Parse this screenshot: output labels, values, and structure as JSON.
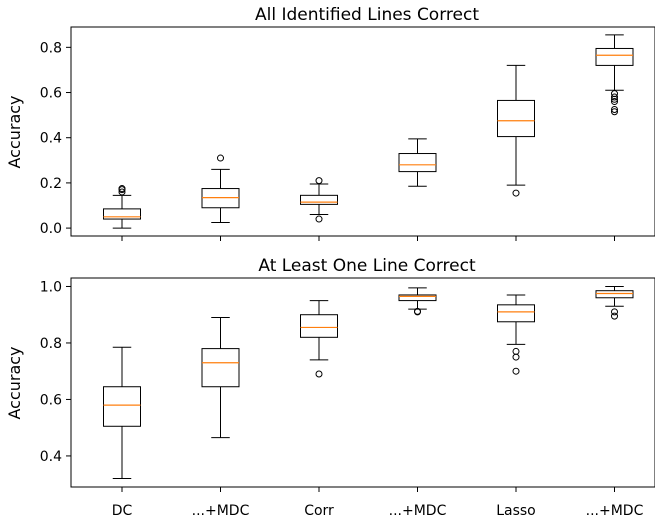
{
  "colors": {
    "box": "#000000",
    "median": "#ff7f0e",
    "background": "#ffffff"
  },
  "categories": [
    "DC",
    "...+MDC",
    "Corr",
    "...+MDC",
    "Lasso",
    "...+MDC"
  ],
  "chart_data": [
    {
      "type": "box",
      "title": "All Identified Lines Correct",
      "xlabel": "",
      "ylabel": "Accuracy",
      "ylim": [
        -0.035,
        0.89
      ],
      "yticks": [
        0.0,
        0.2,
        0.4,
        0.6,
        0.8
      ],
      "ytick_labels": [
        "0.0",
        "0.2",
        "0.4",
        "0.6",
        "0.8"
      ],
      "series": [
        {
          "category": "DC",
          "whisker_low": 0.0,
          "q1": 0.04,
          "median": 0.05,
          "q3": 0.085,
          "whisker_high": 0.145,
          "outliers": [
            0.16,
            0.17,
            0.175
          ]
        },
        {
          "category": "...+MDC",
          "whisker_low": 0.025,
          "q1": 0.09,
          "median": 0.135,
          "q3": 0.175,
          "whisker_high": 0.26,
          "outliers": [
            0.31
          ]
        },
        {
          "category": "Corr",
          "whisker_low": 0.06,
          "q1": 0.105,
          "median": 0.115,
          "q3": 0.145,
          "whisker_high": 0.195,
          "outliers": [
            0.04,
            0.21
          ]
        },
        {
          "category": "...+MDC",
          "whisker_low": 0.185,
          "q1": 0.25,
          "median": 0.28,
          "q3": 0.33,
          "whisker_high": 0.395,
          "outliers": []
        },
        {
          "category": "Lasso",
          "whisker_low": 0.19,
          "q1": 0.405,
          "median": 0.475,
          "q3": 0.565,
          "whisker_high": 0.72,
          "outliers": [
            0.155
          ]
        },
        {
          "category": "...+MDC",
          "whisker_low": 0.61,
          "q1": 0.72,
          "median": 0.765,
          "q3": 0.795,
          "whisker_high": 0.855,
          "outliers": [
            0.515,
            0.525,
            0.56,
            0.57,
            0.58,
            0.595
          ]
        }
      ]
    },
    {
      "type": "box",
      "title": "At Least One Line Correct",
      "xlabel": "",
      "ylabel": "Accuracy",
      "ylim": [
        0.29,
        1.03
      ],
      "yticks": [
        0.4,
        0.6,
        0.8,
        1.0
      ],
      "ytick_labels": [
        "0.4",
        "0.6",
        "0.8",
        "1.0"
      ],
      "series": [
        {
          "category": "DC",
          "whisker_low": 0.32,
          "q1": 0.505,
          "median": 0.58,
          "q3": 0.645,
          "whisker_high": 0.785,
          "outliers": []
        },
        {
          "category": "...+MDC",
          "whisker_low": 0.465,
          "q1": 0.645,
          "median": 0.73,
          "q3": 0.78,
          "whisker_high": 0.89,
          "outliers": []
        },
        {
          "category": "Corr",
          "whisker_low": 0.74,
          "q1": 0.82,
          "median": 0.855,
          "q3": 0.9,
          "whisker_high": 0.95,
          "outliers": [
            0.69
          ]
        },
        {
          "category": "...+MDC",
          "whisker_low": 0.92,
          "q1": 0.95,
          "median": 0.965,
          "q3": 0.97,
          "whisker_high": 0.995,
          "outliers": [
            0.91,
            0.912
          ]
        },
        {
          "category": "Lasso",
          "whisker_low": 0.795,
          "q1": 0.875,
          "median": 0.91,
          "q3": 0.935,
          "whisker_high": 0.97,
          "outliers": [
            0.7,
            0.75,
            0.77
          ]
        },
        {
          "category": "...+MDC",
          "whisker_low": 0.93,
          "q1": 0.96,
          "median": 0.975,
          "q3": 0.985,
          "whisker_high": 1.0,
          "outliers": [
            0.895,
            0.91
          ]
        }
      ]
    }
  ]
}
